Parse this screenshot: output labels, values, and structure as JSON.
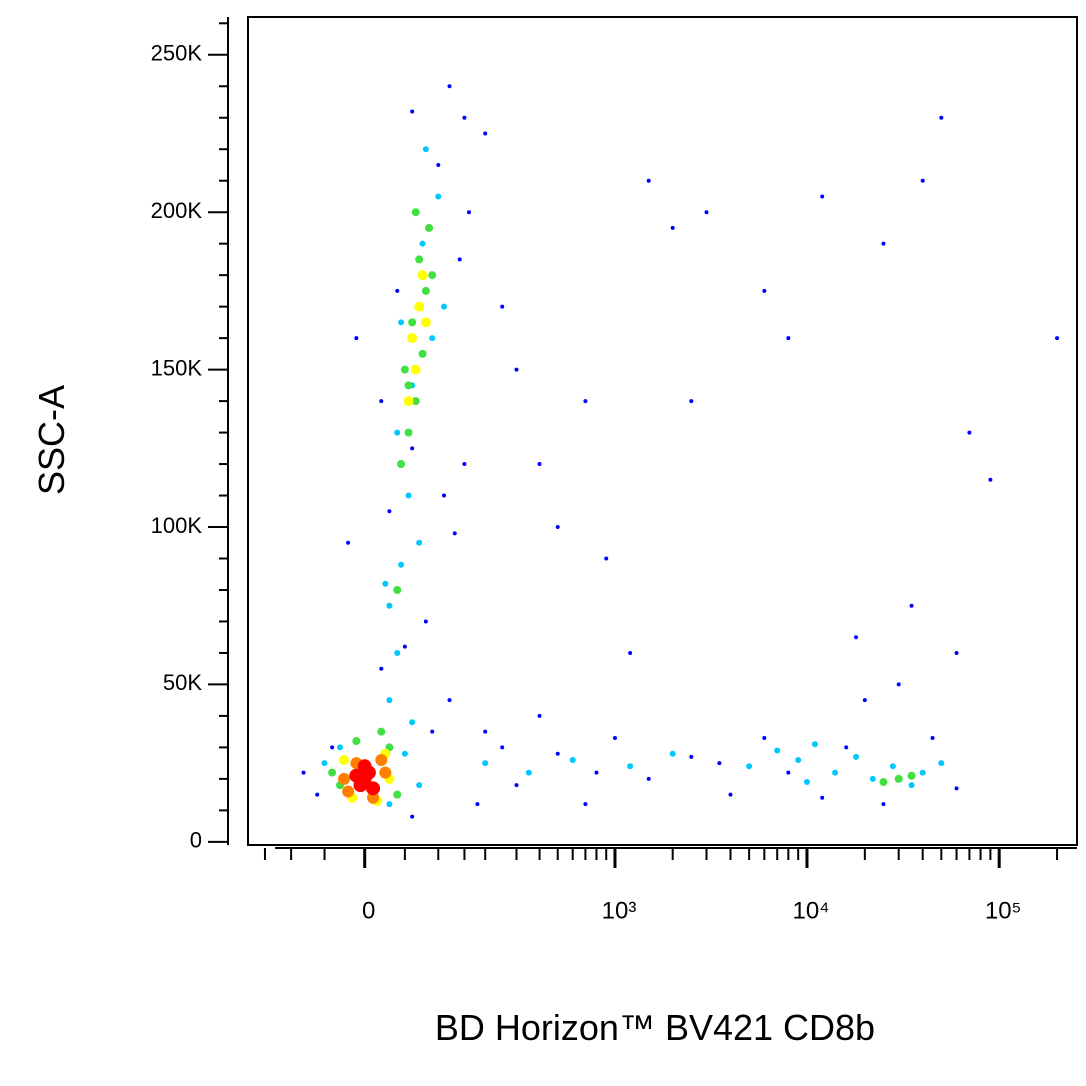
{
  "chart_data": {
    "type": "scatter",
    "x_label": "BD Horizon™ BV421 CD8b",
    "y_label": "SSC-A",
    "xscale": "asinh",
    "x_cofactor": 100,
    "xlim": [
      -190,
      254000
    ],
    "ylim": [
      -1000,
      262000
    ],
    "xticks": [
      0,
      {
        "value": 1000,
        "label": "10³"
      },
      {
        "value": 10000,
        "label": "10⁴"
      },
      {
        "value": 100000,
        "label": "10⁵"
      }
    ],
    "xminorticks": [
      -150,
      -100,
      -50,
      50,
      100,
      150,
      200,
      300,
      400,
      500,
      600,
      700,
      800,
      900,
      2000,
      3000,
      4000,
      5000,
      6000,
      7000,
      8000,
      9000,
      20000,
      30000,
      40000,
      50000,
      60000,
      70000,
      80000,
      90000,
      200000
    ],
    "yticks": [
      0,
      {
        "value": 50000,
        "label": "50K"
      },
      {
        "value": 100000,
        "label": "100K"
      },
      {
        "value": 150000,
        "label": "150K"
      },
      {
        "value": 200000,
        "label": "200K"
      },
      {
        "value": 250000,
        "label": "250K"
      }
    ],
    "yminorticks": [
      10000,
      20000,
      30000,
      40000,
      60000,
      70000,
      80000,
      90000,
      110000,
      120000,
      130000,
      140000,
      160000,
      170000,
      180000,
      190000,
      210000,
      220000,
      230000,
      240000,
      260000
    ],
    "series": [
      {
        "color": "#0000ff",
        "x": [
          -60,
          -40,
          -80,
          60,
          90,
          120,
          20,
          50,
          80,
          -20,
          30,
          110,
          150,
          130,
          60,
          20,
          -10,
          40,
          140,
          160,
          100,
          150,
          60,
          120,
          200,
          250,
          300,
          400,
          500,
          700,
          900,
          1500,
          2000,
          3000,
          6000,
          8000,
          12000,
          25000,
          40000,
          50000,
          70000,
          200000,
          90000,
          2500,
          1200,
          18000,
          35000,
          60000,
          30000,
          200,
          300,
          500,
          700,
          1000,
          1500,
          2500,
          4000,
          6000,
          8000,
          12000,
          16000,
          25000,
          45000,
          60000,
          3500,
          800,
          400,
          250,
          180,
          20000
        ],
        "y": [
          15000,
          30000,
          22000,
          8000,
          35000,
          45000,
          55000,
          62000,
          70000,
          95000,
          105000,
          110000,
          120000,
          98000,
          125000,
          140000,
          160000,
          175000,
          185000,
          200000,
          215000,
          230000,
          232000,
          240000,
          225000,
          170000,
          150000,
          120000,
          100000,
          140000,
          90000,
          210000,
          195000,
          200000,
          175000,
          160000,
          205000,
          190000,
          210000,
          230000,
          130000,
          160000,
          115000,
          140000,
          60000,
          65000,
          75000,
          60000,
          50000,
          35000,
          18000,
          28000,
          12000,
          33000,
          20000,
          27000,
          15000,
          33000,
          22000,
          14000,
          30000,
          12000,
          33000,
          17000,
          25000,
          22000,
          40000,
          30000,
          12000,
          45000
        ]
      },
      {
        "color": "#00c8ff",
        "x": [
          -30,
          30,
          50,
          40,
          30,
          45,
          25,
          70,
          55,
          40,
          60,
          90,
          75,
          100,
          80,
          45,
          110,
          200,
          350,
          600,
          1200,
          2000,
          5000,
          7000,
          9000,
          11000,
          14000,
          18000,
          22000,
          28000,
          35000,
          40000,
          50000,
          10000,
          30,
          60,
          -50,
          70
        ],
        "y": [
          30000,
          12000,
          28000,
          60000,
          75000,
          88000,
          82000,
          95000,
          110000,
          130000,
          145000,
          160000,
          190000,
          205000,
          220000,
          165000,
          170000,
          25000,
          22000,
          26000,
          24000,
          28000,
          24000,
          29000,
          26000,
          31000,
          22000,
          27000,
          20000,
          24000,
          18000,
          22000,
          25000,
          19000,
          45000,
          38000,
          25000,
          18000
        ]
      },
      {
        "color": "#40e040",
        "x": [
          -30,
          40,
          -10,
          30,
          55,
          65,
          50,
          75,
          60,
          80,
          70,
          85,
          90,
          45,
          40,
          30000,
          35000,
          25000,
          20,
          -40,
          65,
          55
        ],
        "y": [
          18000,
          15000,
          32000,
          30000,
          130000,
          140000,
          150000,
          155000,
          165000,
          175000,
          185000,
          195000,
          180000,
          120000,
          80000,
          20000,
          21000,
          19000,
          35000,
          22000,
          200000,
          145000
        ]
      },
      {
        "color": "#ffff00",
        "x": [
          60,
          70,
          65,
          75,
          55,
          80,
          -15,
          25,
          -25,
          15,
          30
        ],
        "y": [
          160000,
          170000,
          150000,
          180000,
          140000,
          165000,
          14000,
          28000,
          26000,
          13000,
          20000
        ]
      },
      {
        "color": "#ff8000",
        "x": [
          -20,
          20,
          -10,
          10,
          25,
          -25
        ],
        "y": [
          16000,
          26000,
          25000,
          14000,
          22000,
          20000
        ]
      },
      {
        "color": "#ff0000",
        "x": [
          -5,
          5,
          0,
          -10,
          10,
          0
        ],
        "y": [
          18000,
          22000,
          20000,
          21000,
          17000,
          24000
        ]
      }
    ]
  }
}
